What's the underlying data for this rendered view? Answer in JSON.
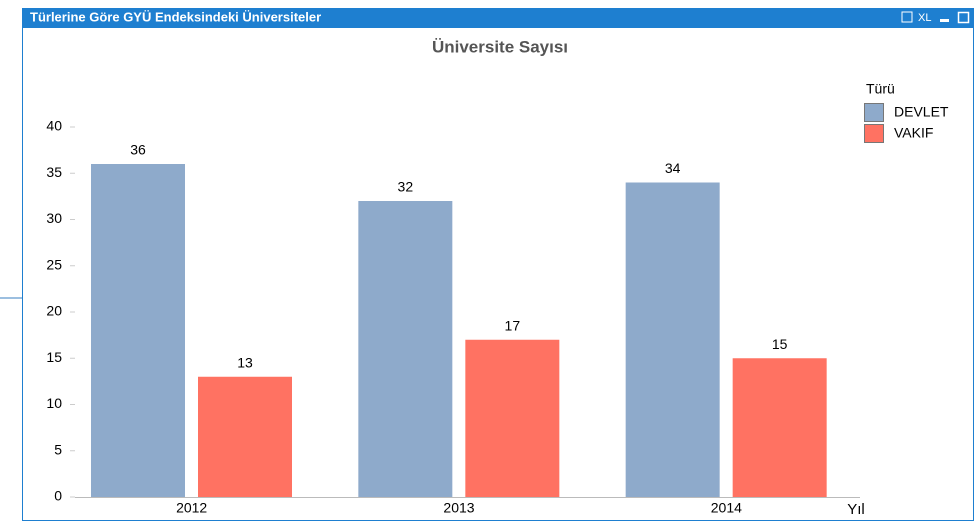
{
  "window": {
    "title": "Türlerine Göre GYÜ Endeksindeki Üniversiteler",
    "xl": "XL"
  },
  "chart_data": {
    "type": "bar",
    "title": "Üniversite Sayısı",
    "x_label": "Yıl",
    "legend_title": "Türü",
    "categories": [
      "2012",
      "2013",
      "2014"
    ],
    "series": [
      {
        "name": "DEVLET",
        "color": "#8eaacb",
        "values": [
          36,
          32,
          34
        ]
      },
      {
        "name": "VAKIF",
        "color": "#ff7262",
        "values": [
          13,
          17,
          15
        ]
      }
    ],
    "ylim": [
      0,
      40
    ],
    "yticks": [
      0,
      5,
      10,
      15,
      20,
      25,
      30,
      35,
      40
    ],
    "grid": false,
    "legend": "top-right"
  }
}
